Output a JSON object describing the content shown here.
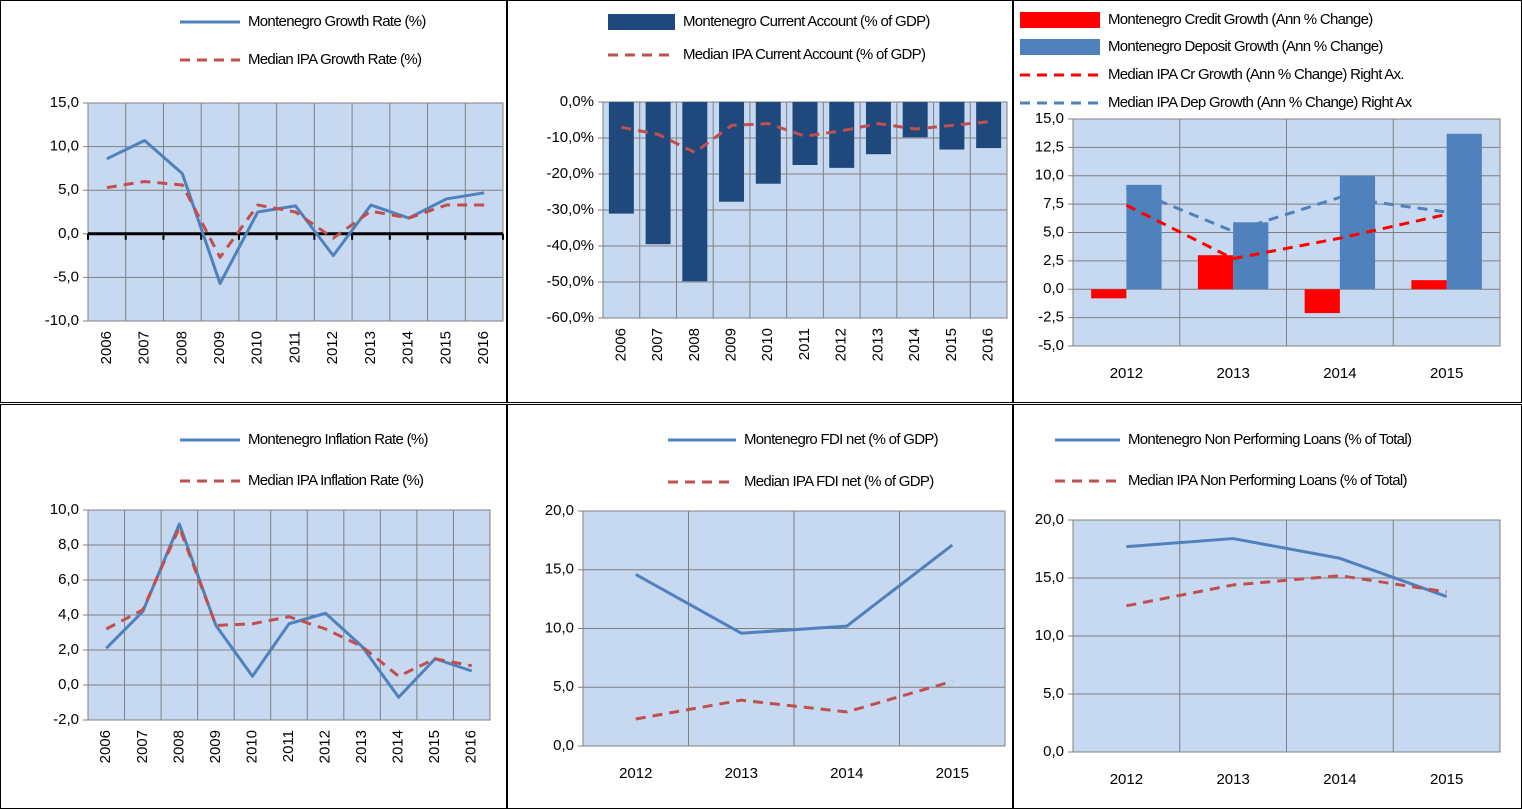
{
  "chart_data": [
    {
      "type": "line",
      "zero_axis": true,
      "categories": [
        "2006",
        "2007",
        "2008",
        "2009",
        "2010",
        "2011",
        "2012",
        "2013",
        "2014",
        "2015",
        "2016"
      ],
      "series": [
        {
          "name": "Montenegro Growth Rate (%)",
          "color": "#4f81bd",
          "dashed": false,
          "values": [
            8.6,
            10.7,
            6.9,
            -5.7,
            2.5,
            3.2,
            -2.5,
            3.3,
            1.8,
            4.0,
            4.7
          ]
        },
        {
          "name": "Median IPA Growth Rate (%)",
          "color": "#c0504d",
          "dashed": true,
          "values": [
            5.3,
            6.0,
            5.6,
            -2.7,
            3.3,
            2.5,
            -0.5,
            2.6,
            1.8,
            3.3,
            3.3
          ]
        }
      ],
      "ylim": [
        -10,
        15
      ],
      "yticks": [
        {
          "value": -10,
          "label": "-10,0"
        },
        {
          "value": -5,
          "label": "-5,0"
        },
        {
          "value": 0,
          "label": "0,0"
        },
        {
          "value": 5,
          "label": "5,0"
        },
        {
          "value": 10,
          "label": "10,0"
        },
        {
          "value": 15,
          "label": "15,0"
        }
      ],
      "grid": true
    },
    {
      "type": "combo",
      "categories": [
        "2006",
        "2007",
        "2008",
        "2009",
        "2010",
        "2011",
        "2012",
        "2013",
        "2014",
        "2015",
        "2016"
      ],
      "series": [
        {
          "name": "Montenegro Current Account (% of  GDP)",
          "type": "bar",
          "color": "#1f497d",
          "values": [
            -31.0,
            -39.5,
            -49.8,
            -27.7,
            -22.7,
            -17.5,
            -18.3,
            -14.5,
            -9.8,
            -13.2,
            -12.8
          ]
        },
        {
          "name": "Median IPA Current Account (% of GDP)",
          "type": "line",
          "color": "#c0504d",
          "dashed": true,
          "values": [
            -7.0,
            -9.0,
            -14.0,
            -6.5,
            -6.0,
            -9.5,
            -8.0,
            -6.0,
            -7.5,
            -6.5,
            -5.5
          ]
        }
      ],
      "ylim": [
        -60,
        0
      ],
      "yticks": [
        {
          "value": -60,
          "label": "-60,0%"
        },
        {
          "value": -50,
          "label": "-50,0%"
        },
        {
          "value": -40,
          "label": "-40,0%"
        },
        {
          "value": -30,
          "label": "-30,0%"
        },
        {
          "value": -20,
          "label": "-20,0%"
        },
        {
          "value": -10,
          "label": "-10,0%"
        },
        {
          "value": 0,
          "label": "0,0%"
        }
      ],
      "grid": true
    },
    {
      "type": "combo",
      "categories": [
        "2012",
        "2013",
        "2014",
        "2015"
      ],
      "series": [
        {
          "name": "Montenegro Credit Growth  (Ann % Change)",
          "type": "bar",
          "color": "#ff0000",
          "values": [
            -0.8,
            3.0,
            -2.1,
            0.8
          ]
        },
        {
          "name": "Montenegro Deposit Growth (Ann % Change)",
          "type": "bar",
          "color": "#4f81bd",
          "values": [
            9.2,
            5.9,
            10.0,
            13.7
          ]
        },
        {
          "name": "Median IPA  Cr Growth  (Ann % Change) Right Ax.",
          "type": "line",
          "color": "#ff0000",
          "dashed": true,
          "values": [
            7.4,
            2.7,
            4.5,
            6.6
          ]
        },
        {
          "name": "Median IPA  Dep Growth  (Ann % Change) Right Ax",
          "type": "line",
          "color": "#4f81bd",
          "dashed": true,
          "values": [
            9.0,
            5.1,
            8.1,
            6.8
          ]
        }
      ],
      "ylim": [
        -5,
        15
      ],
      "yticks": [
        {
          "value": -5,
          "label": "-5,0"
        },
        {
          "value": -2.5,
          "label": "-2,5"
        },
        {
          "value": 0,
          "label": "0,0"
        },
        {
          "value": 2.5,
          "label": "2,5"
        },
        {
          "value": 5,
          "label": "5,0"
        },
        {
          "value": 7.5,
          "label": "7,5"
        },
        {
          "value": 10,
          "label": "10,0"
        },
        {
          "value": 12.5,
          "label": "12,5"
        },
        {
          "value": 15,
          "label": "15,0"
        }
      ],
      "grid": true
    },
    {
      "type": "line",
      "categories": [
        "2006",
        "2007",
        "2008",
        "2009",
        "2010",
        "2011",
        "2012",
        "2013",
        "2014",
        "2015",
        "2016"
      ],
      "series": [
        {
          "name": "Montenegro Inflation Rate (%)",
          "color": "#4f81bd",
          "dashed": false,
          "values": [
            2.1,
            4.2,
            9.2,
            3.4,
            0.5,
            3.5,
            4.1,
            2.2,
            -0.7,
            1.5,
            0.8
          ]
        },
        {
          "name": "Median IPA Inflation Rate (%)",
          "color": "#c0504d",
          "dashed": true,
          "values": [
            3.2,
            4.3,
            9.0,
            3.4,
            3.5,
            3.9,
            3.2,
            2.2,
            0.5,
            1.5,
            1.1
          ]
        }
      ],
      "ylim": [
        -2,
        10
      ],
      "yticks": [
        {
          "value": -2,
          "label": "-2,0"
        },
        {
          "value": 0,
          "label": "0,0"
        },
        {
          "value": 2,
          "label": "2,0"
        },
        {
          "value": 4,
          "label": "4,0"
        },
        {
          "value": 6,
          "label": "6,0"
        },
        {
          "value": 8,
          "label": "8,0"
        },
        {
          "value": 10,
          "label": "10,0"
        }
      ],
      "grid": true
    },
    {
      "type": "line",
      "categories": [
        "2012",
        "2013",
        "2014",
        "2015"
      ],
      "series": [
        {
          "name": "Montenegro FDI net (% of GDP)",
          "color": "#4f81bd",
          "dashed": false,
          "values": [
            14.6,
            9.6,
            10.2,
            17.1
          ]
        },
        {
          "name": "Median IPA FDI net (% of GDP)",
          "color": "#c0504d",
          "dashed": true,
          "values": [
            2.3,
            3.9,
            2.9,
            5.5
          ]
        }
      ],
      "ylim": [
        0,
        20
      ],
      "yticks": [
        {
          "value": 0,
          "label": "0,0"
        },
        {
          "value": 5,
          "label": "5,0"
        },
        {
          "value": 10,
          "label": "10,0"
        },
        {
          "value": 15,
          "label": "15,0"
        },
        {
          "value": 20,
          "label": "20,0"
        }
      ],
      "grid": true
    },
    {
      "type": "line",
      "categories": [
        "2012",
        "2013",
        "2014",
        "2015"
      ],
      "series": [
        {
          "name": "Montenegro Non Performing Loans (% of Total)",
          "color": "#4f81bd",
          "dashed": false,
          "values": [
            17.7,
            18.4,
            16.7,
            13.4
          ]
        },
        {
          "name": "Median IPA Non Performing Loans (% of Total)",
          "color": "#c0504d",
          "dashed": true,
          "values": [
            12.6,
            14.4,
            15.2,
            13.8
          ]
        }
      ],
      "ylim": [
        0,
        20
      ],
      "yticks": [
        {
          "value": 0,
          "label": "0,0"
        },
        {
          "value": 5,
          "label": "5,0"
        },
        {
          "value": 10,
          "label": "10,0"
        },
        {
          "value": 15,
          "label": "15,0"
        },
        {
          "value": 20,
          "label": "20,0"
        }
      ],
      "grid": true
    }
  ]
}
